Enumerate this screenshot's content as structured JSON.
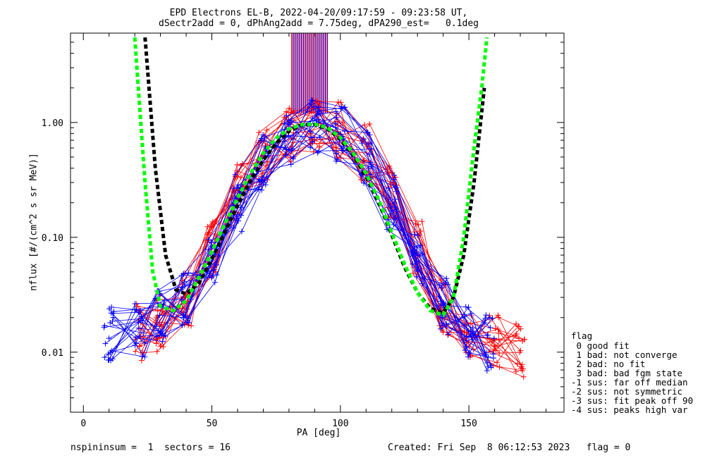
{
  "title_line1": "EPD Electrons EL-B, 2022-04-20/09:17:59 - 09:23:58 UT,",
  "title_line2": "dSectr2add = 0, dPhAng2add = 7.75deg, dPA290_est=   0.1deg",
  "footer_left": "nspininsum =  1  sectors = 16",
  "footer_right": "Created: Fri Sep  8 06:12:53 2023   flag = 0",
  "legend": {
    "title": "flag",
    "items": [
      " 0 good fit",
      " 1 bad: not converge",
      " 2 bad: no fit",
      " 3 bad: bad fgm state",
      "-1 sus: far off median",
      "-2 sus: not symmetric",
      "-3 sus: fit peak off 90",
      "-4 sus: peaks high var"
    ]
  },
  "colors": {
    "red": "#ff0000",
    "blue": "#0000ff",
    "black_fit": "#000000",
    "green_fit": "#00ff00"
  },
  "chart_data": {
    "type": "line",
    "xlabel": "PA [deg]",
    "ylabel": "nflux [#/(cm^2 s sr MeV)]",
    "xlim": [
      -5,
      187
    ],
    "ylim": [
      0.003,
      6.0
    ],
    "yscale": "log",
    "xticks": [
      0,
      50,
      100,
      150
    ],
    "xtick_labels": [
      "0",
      "50",
      "100",
      "150"
    ],
    "yticks": [
      0.01,
      0.1,
      1.0
    ],
    "ytick_labels": [
      "0.01",
      "0.10",
      "1.00"
    ],
    "series": [
      {
        "color": "red",
        "x": [
          22,
          30,
          40,
          50,
          60,
          70,
          80,
          90,
          100,
          110,
          120,
          130,
          140,
          150,
          160,
          170
        ],
        "y": [
          0.015,
          0.018,
          0.03,
          0.08,
          0.25,
          0.5,
          0.8,
          0.95,
          0.85,
          0.55,
          0.25,
          0.08,
          0.025,
          0.015,
          0.012,
          0.01
        ]
      },
      {
        "color": "blue",
        "x": [
          10,
          22,
          30,
          40,
          50,
          60,
          70,
          80,
          90,
          100,
          110,
          120,
          130,
          140,
          150,
          158
        ],
        "y": [
          0.015,
          0.016,
          0.02,
          0.03,
          0.07,
          0.2,
          0.45,
          0.75,
          0.95,
          0.8,
          0.5,
          0.2,
          0.07,
          0.025,
          0.015,
          0.012
        ]
      },
      {
        "color": "black_fit",
        "x": [
          24,
          28,
          32,
          36,
          40,
          45,
          50,
          55,
          60,
          65,
          70,
          75,
          80,
          85,
          90,
          95,
          100,
          105,
          110,
          115,
          120,
          125,
          130,
          135,
          140,
          144,
          148,
          152,
          156
        ],
        "y": [
          5.5,
          0.4,
          0.07,
          0.035,
          0.032,
          0.04,
          0.065,
          0.11,
          0.19,
          0.31,
          0.47,
          0.66,
          0.84,
          0.95,
          0.96,
          0.88,
          0.72,
          0.52,
          0.34,
          0.2,
          0.105,
          0.055,
          0.033,
          0.024,
          0.022,
          0.03,
          0.07,
          0.3,
          2.0
        ]
      },
      {
        "color": "green_fit",
        "x": [
          20,
          24,
          27,
          30,
          35,
          40,
          45,
          50,
          55,
          60,
          65,
          70,
          75,
          80,
          85,
          90,
          95,
          100,
          105,
          110,
          115,
          120,
          125,
          130,
          135,
          140,
          144,
          148,
          152,
          155,
          157
        ],
        "y": [
          5.5,
          0.3,
          0.05,
          0.025,
          0.023,
          0.028,
          0.045,
          0.075,
          0.13,
          0.22,
          0.36,
          0.54,
          0.73,
          0.88,
          0.96,
          0.97,
          0.9,
          0.74,
          0.54,
          0.36,
          0.21,
          0.11,
          0.058,
          0.033,
          0.023,
          0.021,
          0.03,
          0.1,
          0.6,
          2.0,
          5.5
        ]
      }
    ],
    "vertical_markers": {
      "x_range": [
        81,
        95
      ],
      "y_range": [
        1.2,
        6.0
      ],
      "colors": [
        "red",
        "blue"
      ]
    }
  }
}
